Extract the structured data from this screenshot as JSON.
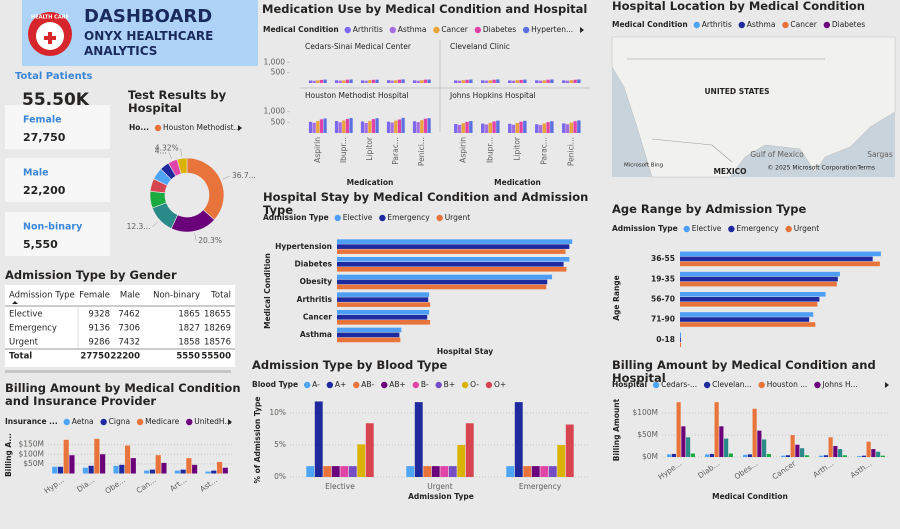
{
  "header": {
    "logo_text": "HEALTH CARE",
    "title": "DASHBOARD",
    "subtitle": "ONYX HEALTHCARE ANALYTICS"
  },
  "kpis": {
    "title": "Total Patients",
    "total": "55.50K",
    "cards": [
      {
        "label": "Female",
        "value": "27,750"
      },
      {
        "label": "Male",
        "value": "22,200"
      },
      {
        "label": "Non-binary",
        "value": "5,550"
      }
    ]
  },
  "table": {
    "title": "Admission Type by Gender",
    "columns": [
      "Admission Type",
      "Female",
      "Male",
      "Non-binary",
      "Total"
    ],
    "rows": [
      [
        "Elective",
        9328,
        7462,
        1865,
        18655
      ],
      [
        "Emergency",
        9136,
        7306,
        1827,
        18269
      ],
      [
        "Urgent",
        9286,
        7432,
        1858,
        18576
      ]
    ],
    "total": [
      "Total",
      27750,
      22200,
      5550,
      55500
    ]
  },
  "chart_data": [
    {
      "type": "bar",
      "title": "Medication Use by Medical Condition and Hospital",
      "legend_title": "Medical Condition",
      "categories": [
        "Aspirin",
        "Ibupr...",
        "Lipitor",
        "Parac...",
        "Penici..."
      ],
      "x_label": "Medication",
      "series": [
        {
          "name": "Arthritis",
          "color": "#7b68ee"
        },
        {
          "name": "Asthma",
          "color": "#a66ee0"
        },
        {
          "name": "Cancer",
          "color": "#e8a33b"
        },
        {
          "name": "Diabetes",
          "color": "#e044a7"
        },
        {
          "name": "Hyperten...",
          "color": "#5b6fe0"
        }
      ],
      "ylim": [
        0,
        1500
      ],
      "yticks": [
        500,
        {
          "value": 1000,
          "label": "1,000"
        }
      ],
      "panels": [
        {
          "title": "Cedars-Sinai Medical Center",
          "values": [
            [
              120,
              130,
              125,
              135,
              128
            ],
            [
              110,
              120,
              115,
              118,
              112
            ],
            [
              130,
              125,
              140,
              132,
              138
            ],
            [
              150,
              160,
              155,
              158,
              162
            ],
            [
              165,
              170,
              160,
              175,
              168
            ]
          ]
        },
        {
          "title": "Cleveland Clinic",
          "values": [
            [
              125,
              128,
              122,
              130,
              126
            ],
            [
              112,
              118,
              110,
              115,
              116
            ],
            [
              135,
              130,
              138,
              128,
              134
            ],
            [
              155,
              158,
              150,
              160,
              157
            ],
            [
              168,
              172,
              165,
              170,
              171
            ]
          ]
        },
        {
          "title": "Houston Methodist Hospital",
          "values": [
            [
              520,
              560,
              540,
              530,
              550
            ],
            [
              480,
              500,
              470,
              490,
              510
            ],
            [
              560,
              590,
              570,
              580,
              600
            ],
            [
              640,
              660,
              650,
              630,
              670
            ],
            [
              680,
              700,
              690,
              710,
              695
            ]
          ]
        },
        {
          "title": "Johns Hopkins Hospital",
          "values": [
            [
              420,
              440,
              430,
              410,
              450
            ],
            [
              380,
              400,
              390,
              370,
              410
            ],
            [
              460,
              480,
              470,
              450,
              490
            ],
            [
              520,
              540,
              530,
              510,
              550
            ],
            [
              560,
              580,
              570,
              550,
              590
            ]
          ]
        }
      ]
    },
    {
      "type": "map",
      "title": "Hospital Location by Medical Condition",
      "legend_title": "Medical Condition",
      "series": [
        {
          "name": "Arthritis",
          "color": "#4ea5f5"
        },
        {
          "name": "Asthma",
          "color": "#1f2a9e"
        },
        {
          "name": "Cancer",
          "color": "#e8743b"
        },
        {
          "name": "Diabetes",
          "color": "#6b007b"
        }
      ],
      "labels": [
        "UNITED STATES",
        "MEXICO",
        "Gulf of Mexico",
        "Sargas"
      ],
      "attribution": "© 2025 Microsoft Corporation",
      "terms": "Terms",
      "provider": "Microsoft Bing"
    },
    {
      "type": "pie",
      "donut": true,
      "title": "Test Results by Hospital",
      "legend_title": "Ho...",
      "categories": [
        "Houston Methodist...",
        null,
        null,
        null,
        null,
        null,
        null,
        null,
        null
      ],
      "values": [
        36.7,
        20.3,
        12.3,
        7.3,
        5.6,
        5.2,
        4.18,
        4.1,
        4.32
      ],
      "value_labels": [
        "36.7...",
        "20.3%",
        "12.3...",
        null,
        null,
        null,
        null,
        "4...",
        "4.32%"
      ],
      "colors": [
        "#e8743b",
        "#6b007b",
        "#2a8a8a",
        "#1aab40",
        "#d64550",
        "#4ea5f5",
        "#1f2a9e",
        "#e044a7",
        "#d9b300"
      ]
    },
    {
      "type": "bar",
      "orientation": "horizontal",
      "title": "Hospital Stay by Medical Condition and Admission Type",
      "legend_title": "Admission Type",
      "categories": [
        "Hypertension",
        "Diabetes",
        "Obesity",
        "Arthritis",
        "Cancer",
        "Asthma"
      ],
      "x_label": "Hospital Stay",
      "y_label": "Medical Condition",
      "xlim": [
        0,
        25000
      ],
      "series": [
        {
          "name": "Elective",
          "color": "#4e9ef5",
          "values": [
            24500,
            24200,
            22400,
            9600,
            9600,
            6700
          ]
        },
        {
          "name": "Emergency",
          "color": "#1f2a9e",
          "values": [
            24200,
            23600,
            21900,
            9500,
            9400,
            6500
          ]
        },
        {
          "name": "Urgent",
          "color": "#e8743b",
          "values": [
            23800,
            23900,
            21800,
            9700,
            9700,
            6600
          ]
        }
      ]
    },
    {
      "type": "bar",
      "orientation": "horizontal",
      "title": "Age Range by Admission Type",
      "legend_title": "Admission Type",
      "categories": [
        "36-55",
        "19-35",
        "56-70",
        "71-90",
        "0-18"
      ],
      "y_label": "Age Range",
      "xlim": [
        0,
        10000
      ],
      "series": [
        {
          "name": "Elective",
          "color": "#4e9ef5",
          "values": [
            9800,
            7800,
            7100,
            6500,
            50
          ]
        },
        {
          "name": "Emergency",
          "color": "#1f2a9e",
          "values": [
            9400,
            7700,
            6800,
            6300,
            40
          ]
        },
        {
          "name": "Urgent",
          "color": "#e8743b",
          "values": [
            9750,
            7650,
            6700,
            6600,
            50
          ]
        }
      ]
    },
    {
      "type": "bar",
      "title": "Admission Type by Blood Type",
      "legend_title": "Blood Type",
      "categories": [
        "Elective",
        "Urgent",
        "Emergency"
      ],
      "x_label": "Admission Type",
      "y_label": "% of Admission Type",
      "ylim": [
        0,
        12.5
      ],
      "yticks": [
        {
          "value": 0,
          "label": "0%"
        },
        {
          "value": 5,
          "label": "5%"
        },
        {
          "value": 10,
          "label": "10%"
        }
      ],
      "grid": true,
      "series": [
        {
          "name": "A-",
          "color": "#4ea5f5",
          "values": [
            1.7,
            1.7,
            1.7
          ]
        },
        {
          "name": "A+",
          "color": "#1f2a9e",
          "values": [
            11.8,
            11.7,
            11.7
          ]
        },
        {
          "name": "AB-",
          "color": "#e8743b",
          "values": [
            1.7,
            1.7,
            1.7
          ]
        },
        {
          "name": "AB+",
          "color": "#6b007b",
          "values": [
            1.7,
            1.7,
            1.7
          ]
        },
        {
          "name": "B-",
          "color": "#e044a7",
          "values": [
            1.7,
            1.7,
            1.7
          ]
        },
        {
          "name": "B+",
          "color": "#744ec2",
          "values": [
            1.7,
            1.7,
            1.7
          ]
        },
        {
          "name": "O-",
          "color": "#d9b300",
          "values": [
            5.1,
            5.0,
            5.0
          ]
        },
        {
          "name": "O+",
          "color": "#d64550",
          "values": [
            8.4,
            8.4,
            8.2
          ]
        }
      ]
    },
    {
      "type": "bar",
      "title": "Billing Amount by Medical Condition and Hospital",
      "legend_title": "Hospital",
      "categories": [
        "Hype...",
        "Diab...",
        "Obes...",
        "Cancer",
        "Arth...",
        "Asth..."
      ],
      "x_label": "Medical Condition",
      "y_label": "Billing Amount",
      "ylim": [
        0,
        130000000
      ],
      "yticks": [
        {
          "value": 0,
          "label": "$0M"
        },
        {
          "value": 50000000,
          "label": "$50M"
        },
        {
          "value": 100000000,
          "label": "$100M"
        }
      ],
      "grid": true,
      "series": [
        {
          "name": "Cedars-...",
          "color": "#4ea5f5",
          "values": [
            6000000,
            6000000,
            5000000,
            3000000,
            3000000,
            2000000
          ]
        },
        {
          "name": "Clevelan...",
          "color": "#1f2a9e",
          "values": [
            7000000,
            7000000,
            6000000,
            4000000,
            4000000,
            3000000
          ]
        },
        {
          "name": "Houston ...",
          "color": "#e8743b",
          "values": [
            125000000,
            125000000,
            110000000,
            50000000,
            45000000,
            35000000
          ]
        },
        {
          "name": "Johns H...",
          "color": "#6b007b",
          "values": [
            70000000,
            70000000,
            60000000,
            28000000,
            25000000,
            18000000
          ]
        },
        {
          "name": null,
          "color": "#2a8a8a",
          "values": [
            45000000,
            42000000,
            40000000,
            20000000,
            18000000,
            12000000
          ]
        },
        {
          "name": null,
          "color": "#1aab40",
          "values": [
            8000000,
            8000000,
            7000000,
            4000000,
            4000000,
            3000000
          ]
        }
      ]
    },
    {
      "type": "bar",
      "title": "Billing Amount by Medical Condition and Insurance Provider",
      "legend_title": "Insurance ...",
      "categories": [
        "Hyp...",
        "Dia...",
        "Obe...",
        "Can...",
        "Art...",
        "Ast..."
      ],
      "y_label": "Billing A...",
      "ylim": [
        0,
        200000000
      ],
      "yticks": [
        {
          "value": 50000000,
          "label": "$50M"
        },
        {
          "value": 100000000,
          "label": "$100M"
        },
        {
          "value": 150000000,
          "label": "$150M"
        }
      ],
      "grid": true,
      "series": [
        {
          "name": "Aetna",
          "color": "#4ea5f5",
          "values": [
            35000000,
            30000000,
            40000000,
            15000000,
            15000000,
            10000000
          ]
        },
        {
          "name": "Cigna",
          "color": "#1f2a9e",
          "values": [
            35000000,
            40000000,
            45000000,
            20000000,
            20000000,
            15000000
          ]
        },
        {
          "name": "Medicare",
          "color": "#e8743b",
          "values": [
            175000000,
            180000000,
            145000000,
            95000000,
            80000000,
            60000000
          ]
        },
        {
          "name": "UnitedH...",
          "color": "#6b007b",
          "values": [
            95000000,
            100000000,
            80000000,
            55000000,
            45000000,
            30000000
          ]
        }
      ]
    }
  ]
}
